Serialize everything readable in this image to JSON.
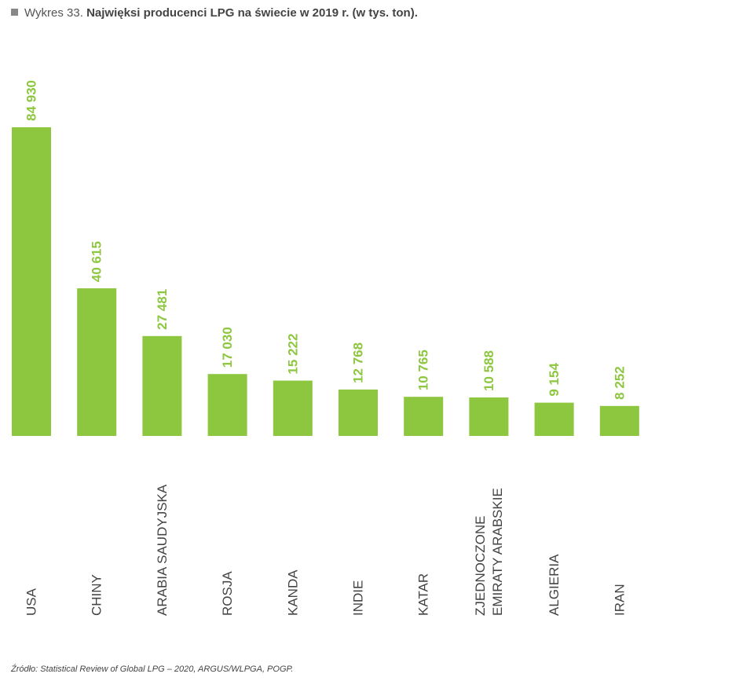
{
  "title": {
    "prefix": "Wykres 33.",
    "text": "Najwięksi producenci LPG na świecie w 2019 r. (w tys. ton)."
  },
  "source": "Źródło: Statistical Review of Global LPG – 2020, ARGUS/WLPGA, POGP.",
  "colors": {
    "bar": "#8dc63f",
    "value_label": "#8dc63f",
    "category_label": "#444444"
  },
  "chart_data": {
    "type": "bar",
    "title": "Najwięksi producenci LPG na świecie w 2019 r. (w tys. ton).",
    "categories": [
      "USA",
      "CHINY",
      "ARABIA SAUDYJSKA",
      "ROSJA",
      "KANDA",
      "INDIE",
      "KATAR",
      "ZJEDNOCZONE EMIRATY ARABSKIE",
      "ALGIERIA",
      "IRAN"
    ],
    "category_lines": [
      [
        "USA"
      ],
      [
        "CHINY"
      ],
      [
        "ARABIA SAUDYJSKA"
      ],
      [
        "ROSJA"
      ],
      [
        "KANDA"
      ],
      [
        "INDIE"
      ],
      [
        "KATAR"
      ],
      [
        "ZJEDNOCZONE",
        "EMIRATY ARABSKIE"
      ],
      [
        "ALGIERIA"
      ],
      [
        "IRAN"
      ]
    ],
    "values": [
      84930,
      40615,
      27481,
      17030,
      15222,
      12768,
      10765,
      10588,
      9154,
      8252
    ],
    "value_labels": [
      "84 930",
      "40 615",
      "27 481",
      "17 030",
      "15 222",
      "12 768",
      "10 765",
      "10 588",
      "9 154",
      "8 252"
    ],
    "grid": false,
    "legend": "none"
  }
}
